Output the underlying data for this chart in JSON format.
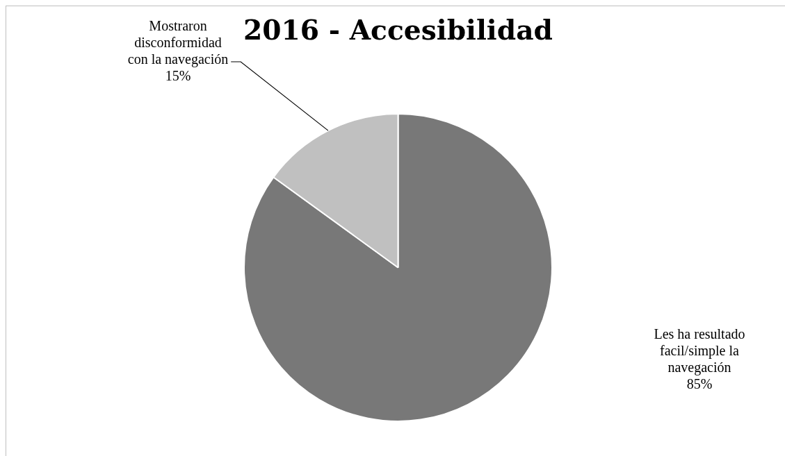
{
  "chart_data": {
    "type": "pie",
    "title": "2016 - Accesibilidad",
    "categories": [
      "Les ha resultado facil/simple la navegación",
      "Mostraron disconformidad con la navegación"
    ],
    "values": [
      85,
      15
    ],
    "colors": [
      "#787878",
      "#c0c0c0"
    ],
    "value_labels": [
      "85%",
      "15%"
    ],
    "legend": false
  }
}
